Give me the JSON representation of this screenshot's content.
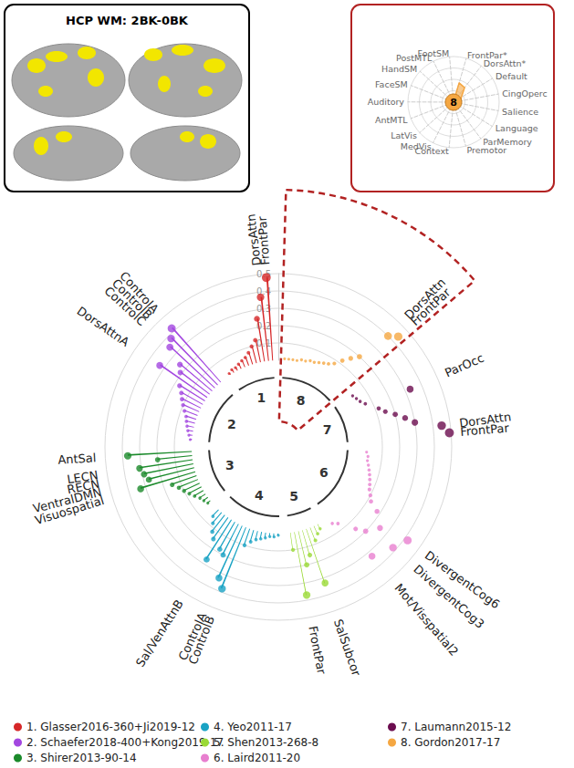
{
  "chart_data": [
    {
      "type": "lollipop",
      "ylim": [
        0,
        0.5
      ],
      "yticks": [
        0.1,
        0.2,
        0.3,
        0.4,
        0.5
      ],
      "grid": true,
      "legend": "bottom",
      "series": [
        {
          "name": "1. Glasser2016-360+Ji2019-12",
          "color": "#d62728",
          "categories": [
            "FrontPar",
            "DorsAttn",
            null,
            null,
            null,
            null,
            null,
            null,
            null,
            null,
            null,
            null
          ],
          "values": [
            0.48,
            0.37,
            0.25,
            0.13,
            0.1,
            0.07,
            0.05,
            0.04,
            0.03,
            0.02,
            0.02,
            0.01
          ]
        },
        {
          "name": "2. Schaefer2018-400+Kong2019-17",
          "color": "#a347e0",
          "categories": [
            "ControlA",
            "ControlB",
            "ControlC",
            null,
            null,
            "DorsAttnA",
            null,
            null,
            null,
            null,
            null,
            null,
            null,
            null,
            null,
            null,
            null
          ],
          "values": [
            0.42,
            0.38,
            0.35,
            0.24,
            0.21,
            0.33,
            0.17,
            0.14,
            0.12,
            0.1,
            0.08,
            0.06,
            0.05,
            0.04,
            0.03,
            0.02,
            0.01
          ]
        },
        {
          "name": "3. Shirer2013-90-14",
          "color": "#1b8a2b",
          "categories": [
            "AntSal",
            null,
            "LECN",
            "RECN",
            "VentralDMN",
            "Visuospatial",
            null,
            null,
            null,
            null,
            null,
            null,
            null,
            null
          ],
          "values": [
            0.37,
            0.2,
            0.31,
            0.29,
            0.27,
            0.33,
            0.15,
            0.12,
            0.1,
            0.08,
            0.06,
            0.04,
            0.03,
            0.02
          ]
        },
        {
          "name": "4. Yeo2011-17",
          "color": "#1aa3c4",
          "categories": [
            null,
            null,
            null,
            null,
            "Sal/VenAttnB",
            null,
            null,
            "ControlA",
            "ControlB",
            null,
            null,
            null,
            null,
            null,
            null,
            null,
            null
          ],
          "values": [
            0.05,
            0.08,
            0.12,
            0.15,
            0.27,
            0.18,
            0.2,
            0.33,
            0.38,
            0.1,
            0.07,
            0.05,
            0.04,
            0.03,
            0.02,
            0.02,
            0.01
          ]
        },
        {
          "name": "5. Shen2013-268-8",
          "color": "#9ad936",
          "categories": [
            null,
            "FrontPar",
            null,
            null,
            "SalSubcor",
            null,
            null,
            null
          ],
          "values": [
            0.1,
            0.37,
            0.2,
            0.15,
            0.33,
            0.08,
            0.05,
            0.03
          ]
        },
        {
          "name": "6. Laird2011-20",
          "color": "#e87fcf",
          "categories": [
            null,
            null,
            "Mot/Visspatial2",
            null,
            null,
            "DivergentCog3",
            null,
            "DivergentCog6",
            null,
            null,
            null,
            null,
            null,
            null,
            null,
            null,
            null,
            null,
            null,
            null
          ],
          "values": [
            0.04,
            0.06,
            0.33,
            0.15,
            0.2,
            0.38,
            0.25,
            0.42,
            0.18,
            0.12,
            0.1,
            0.08,
            0.07,
            0.06,
            0.05,
            0.04,
            0.03,
            0.02,
            0.02,
            0.01
          ]
        },
        {
          "name": "7. Laumann2015-12",
          "color": "#6b0d4f",
          "categories": [
            "FrontPar",
            "DorsAttn",
            null,
            null,
            null,
            null,
            null,
            "ParOcc",
            null,
            null,
            null,
            null
          ],
          "values": [
            0.49,
            0.45,
            0.3,
            0.25,
            0.2,
            0.15,
            0.12,
            0.33,
            0.06,
            0.04,
            0.03,
            0.02
          ]
        },
        {
          "name": "8. Gordon2017-17",
          "color": "#f5a742",
          "categories": [
            "FrontPar",
            "DorsAttn",
            null,
            null,
            null,
            null,
            null,
            null,
            null,
            null,
            null,
            null,
            null,
            null,
            null,
            null,
            null
          ],
          "values": [
            0.44,
            0.4,
            0.2,
            0.16,
            0.12,
            0.08,
            0.06,
            0.05,
            0.04,
            0.03,
            0.03,
            0.02,
            0.02,
            0.01,
            0.01,
            0.01,
            0.01
          ]
        }
      ]
    },
    {
      "type": "radar",
      "label": "8",
      "color": "#f5a742",
      "ylim": [
        0,
        1
      ],
      "tick_labels": false,
      "categories": [
        "FootSM",
        "PostMTL",
        "HandSM",
        "FaceSM",
        "Auditory",
        "AntMTL",
        "LatVis",
        "MedVis",
        "Context",
        "Premotor",
        "ParMemory",
        "Language",
        "Salience",
        "CingOperc",
        "Default",
        "DorsAttn*",
        "FrontPar*"
      ],
      "values": [
        0.01,
        0.01,
        0.01,
        0.01,
        0.02,
        0.02,
        0.03,
        0.03,
        0.04,
        0.05,
        0.06,
        0.08,
        0.12,
        0.16,
        0.2,
        0.4,
        0.44
      ]
    }
  ],
  "image_panel": {
    "title": "HCP WM: 2BK-0BK"
  }
}
